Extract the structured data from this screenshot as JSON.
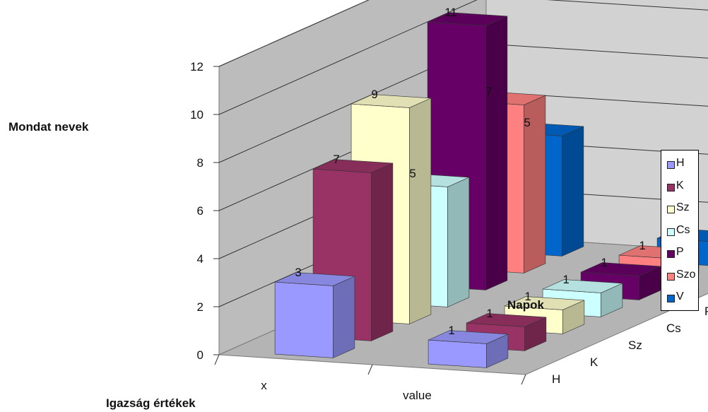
{
  "chart_data": {
    "type": "bar",
    "subtype": "3d-column",
    "ylabel": "Mondat nevek",
    "xlabel": "Igazság értékek",
    "zlabel": "Napok",
    "categories": [
      "x",
      "value"
    ],
    "yticks": [
      "0",
      "2",
      "4",
      "6",
      "8",
      "10",
      "12"
    ],
    "ylim": [
      0,
      12
    ],
    "grid": true,
    "legend_position": "right",
    "series": [
      {
        "name": "H",
        "color": "#9999ff",
        "values": [
          3,
          1
        ]
      },
      {
        "name": "K",
        "color": "#993366",
        "values": [
          7,
          1
        ]
      },
      {
        "name": "Sz",
        "color": "#ffffcc",
        "values": [
          9,
          1
        ]
      },
      {
        "name": "Cs",
        "color": "#ccffff",
        "values": [
          5,
          1
        ]
      },
      {
        "name": "P",
        "color": "#660066",
        "values": [
          11,
          1
        ]
      },
      {
        "name": "Szo",
        "color": "#ff8080",
        "values": [
          7,
          1
        ]
      },
      {
        "name": "V",
        "color": "#0066cc",
        "values": [
          5,
          1
        ]
      }
    ]
  }
}
